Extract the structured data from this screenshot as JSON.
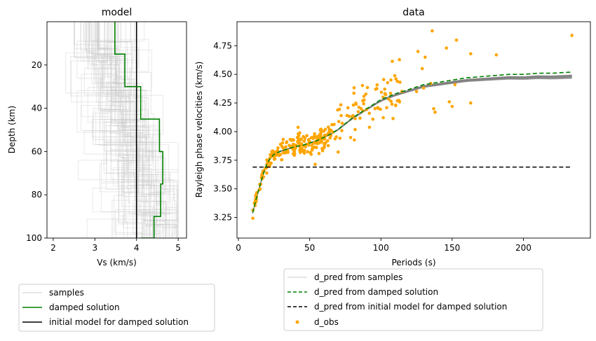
{
  "chart_data": [
    {
      "type": "line",
      "title": "model",
      "xlabel": "Vs (km/s)",
      "ylabel": "Depth (km)",
      "xlim": [
        1.85,
        5.2
      ],
      "ylim": [
        100,
        0
      ],
      "y_inverted": true,
      "xticks": [
        2,
        3,
        4,
        5
      ],
      "yticks": [
        20,
        40,
        60,
        80,
        100
      ],
      "grid": false,
      "legend_position": "below",
      "series": [
        {
          "name": "samples",
          "color": "#cccccc",
          "style": "step",
          "count": 60,
          "vs_range": [
            2.3,
            5.0
          ]
        },
        {
          "name": "damped solution",
          "color": "#008000",
          "style": "step",
          "vs": [
            3.48,
            3.72,
            4.1,
            4.55,
            4.63,
            4.58,
            4.42,
            4.1
          ],
          "depth_top": [
            0,
            15,
            30,
            45,
            60,
            75,
            90,
            100
          ],
          "depth_bottom": [
            15,
            30,
            45,
            60,
            75,
            90,
            100,
            100
          ]
        },
        {
          "name": "initial model for damped solution",
          "color": "#000000",
          "style": "line",
          "vs": [
            4.0,
            4.0
          ],
          "depth": [
            0,
            100
          ]
        }
      ]
    },
    {
      "type": "scatter",
      "title": "data",
      "xlabel": "Periods (s)",
      "ylabel": "Rayleigh phase velocities (km/s)",
      "xlim": [
        -1,
        247
      ],
      "ylim": [
        3.07,
        4.96
      ],
      "xticks": [
        0,
        50,
        100,
        150,
        200
      ],
      "yticks": [
        3.25,
        3.5,
        3.75,
        4.0,
        4.25,
        4.5,
        4.75
      ],
      "grid": false,
      "legend_position": "below",
      "series": [
        {
          "name": "d_pred from samples",
          "color": "#808080",
          "style": "line",
          "count": 40
        },
        {
          "name": "d_pred from damped solution",
          "color": "#008000",
          "style": "dashed",
          "x": [
            10,
            12,
            14,
            16,
            18,
            20,
            22,
            24,
            26,
            28,
            30,
            35,
            40,
            45,
            50,
            55,
            60,
            65,
            70,
            75,
            80,
            90,
            100,
            110,
            120,
            130,
            140,
            150,
            160,
            170,
            180,
            190,
            200,
            210,
            220,
            234
          ],
          "y": [
            3.29,
            3.39,
            3.48,
            3.57,
            3.65,
            3.72,
            3.76,
            3.79,
            3.81,
            3.82,
            3.83,
            3.85,
            3.87,
            3.88,
            3.9,
            3.92,
            3.95,
            3.98,
            4.02,
            4.07,
            4.12,
            4.2,
            4.28,
            4.33,
            4.37,
            4.41,
            4.43,
            4.45,
            4.47,
            4.48,
            4.49,
            4.5,
            4.5,
            4.51,
            4.51,
            4.52
          ]
        },
        {
          "name": "d_pred from initial model for damped solution",
          "color": "#000000",
          "style": "dashed",
          "x": [
            10,
            234
          ],
          "y": [
            3.69,
            3.69
          ]
        },
        {
          "name": "d_obs",
          "color": "#ffa500",
          "style": "points",
          "count": 300,
          "outliers_x": [
            136,
            146,
            153,
            163,
            181,
            234,
            126,
            129,
            131,
            148,
            163,
            150,
            152,
            137,
            135,
            138,
            130,
            125
          ],
          "outliers_y": [
            4.88,
            4.73,
            4.8,
            4.68,
            4.67,
            4.84,
            4.7,
            4.55,
            4.65,
            4.26,
            4.25,
            4.22,
            4.41,
            4.2,
            4.42,
            4.17,
            4.38,
            4.35
          ]
        }
      ]
    }
  ]
}
